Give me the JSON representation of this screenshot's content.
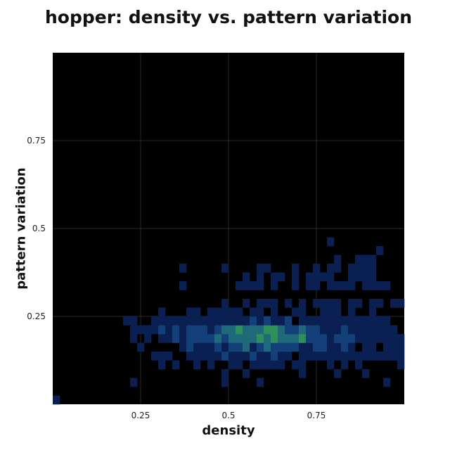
{
  "chart_data": {
    "type": "heatmap",
    "title": "hopper: density vs. pattern variation",
    "xlabel": "density",
    "ylabel": "pattern variation",
    "xlim": [
      0,
      1
    ],
    "ylim": [
      0,
      1
    ],
    "xticks": [
      0.25,
      0.5,
      0.75
    ],
    "yticks": [
      0.25,
      0.5,
      0.75
    ],
    "xtick_labels": [
      "0.25",
      "0.5",
      "0.75"
    ],
    "ytick_labels": [
      "0.25",
      "0.5",
      "0.75"
    ],
    "grid": true,
    "bins": [
      50,
      40
    ],
    "background": "#000000",
    "colormap": [
      "#0a1f52",
      "#14407a",
      "#1f6a7a",
      "#2f8f5a",
      "#4cc13a",
      "#9be61a"
    ],
    "cells": [
      [
        0,
        0,
        1
      ],
      [
        11,
        2,
        1
      ],
      [
        24,
        2,
        1
      ],
      [
        29,
        2,
        1
      ],
      [
        47,
        2,
        1
      ],
      [
        24,
        3,
        1
      ],
      [
        27,
        3,
        1
      ],
      [
        35,
        3,
        1
      ],
      [
        40,
        3,
        1
      ],
      [
        44,
        3,
        1
      ],
      [
        15,
        4,
        1
      ],
      [
        17,
        4,
        1
      ],
      [
        20,
        4,
        1
      ],
      [
        22,
        4,
        1
      ],
      [
        25,
        4,
        1
      ],
      [
        26,
        4,
        1
      ],
      [
        28,
        4,
        1
      ],
      [
        29,
        4,
        1
      ],
      [
        30,
        4,
        1
      ],
      [
        31,
        4,
        1
      ],
      [
        32,
        4,
        1
      ],
      [
        34,
        4,
        1
      ],
      [
        35,
        4,
        1
      ],
      [
        39,
        4,
        1
      ],
      [
        41,
        4,
        1
      ],
      [
        43,
        4,
        1
      ],
      [
        49,
        4,
        1
      ],
      [
        14,
        5,
        1
      ],
      [
        15,
        5,
        1
      ],
      [
        16,
        5,
        1
      ],
      [
        19,
        5,
        1
      ],
      [
        20,
        5,
        1
      ],
      [
        21,
        5,
        1
      ],
      [
        22,
        5,
        1
      ],
      [
        23,
        5,
        1
      ],
      [
        24,
        5,
        2
      ],
      [
        25,
        5,
        1
      ],
      [
        26,
        5,
        1
      ],
      [
        27,
        5,
        1
      ],
      [
        28,
        5,
        2
      ],
      [
        29,
        5,
        1
      ],
      [
        30,
        5,
        1
      ],
      [
        31,
        5,
        2
      ],
      [
        32,
        5,
        1
      ],
      [
        33,
        5,
        1
      ],
      [
        35,
        5,
        1
      ],
      [
        36,
        5,
        1
      ],
      [
        37,
        5,
        1
      ],
      [
        38,
        5,
        1
      ],
      [
        39,
        5,
        1
      ],
      [
        40,
        5,
        1
      ],
      [
        41,
        5,
        1
      ],
      [
        42,
        5,
        1
      ],
      [
        43,
        5,
        1
      ],
      [
        44,
        5,
        1
      ],
      [
        45,
        5,
        1
      ],
      [
        46,
        5,
        1
      ],
      [
        47,
        5,
        1
      ],
      [
        48,
        5,
        1
      ],
      [
        49,
        5,
        1
      ],
      [
        12,
        6,
        1
      ],
      [
        18,
        6,
        1
      ],
      [
        19,
        6,
        2
      ],
      [
        20,
        6,
        1
      ],
      [
        21,
        6,
        1
      ],
      [
        22,
        6,
        1
      ],
      [
        23,
        6,
        2
      ],
      [
        24,
        6,
        1
      ],
      [
        25,
        6,
        2
      ],
      [
        26,
        6,
        2
      ],
      [
        27,
        6,
        3
      ],
      [
        28,
        6,
        1
      ],
      [
        29,
        6,
        2
      ],
      [
        30,
        6,
        3
      ],
      [
        31,
        6,
        2
      ],
      [
        32,
        6,
        2
      ],
      [
        33,
        6,
        2
      ],
      [
        34,
        6,
        2
      ],
      [
        35,
        6,
        1
      ],
      [
        36,
        6,
        1
      ],
      [
        37,
        6,
        2
      ],
      [
        38,
        6,
        2
      ],
      [
        39,
        6,
        1
      ],
      [
        40,
        6,
        1
      ],
      [
        41,
        6,
        2
      ],
      [
        42,
        6,
        1
      ],
      [
        44,
        6,
        1
      ],
      [
        45,
        6,
        1
      ],
      [
        47,
        6,
        1
      ],
      [
        48,
        6,
        1
      ],
      [
        49,
        6,
        1
      ],
      [
        11,
        7,
        1
      ],
      [
        13,
        7,
        1
      ],
      [
        15,
        7,
        1
      ],
      [
        16,
        7,
        1
      ],
      [
        17,
        7,
        2
      ],
      [
        18,
        7,
        1
      ],
      [
        19,
        7,
        2
      ],
      [
        20,
        7,
        2
      ],
      [
        21,
        7,
        2
      ],
      [
        22,
        7,
        2
      ],
      [
        23,
        7,
        3
      ],
      [
        24,
        7,
        2
      ],
      [
        25,
        7,
        3
      ],
      [
        26,
        7,
        3
      ],
      [
        27,
        7,
        3
      ],
      [
        28,
        7,
        3
      ],
      [
        29,
        7,
        4
      ],
      [
        30,
        7,
        3
      ],
      [
        31,
        7,
        4
      ],
      [
        32,
        7,
        3
      ],
      [
        33,
        7,
        3
      ],
      [
        34,
        7,
        3
      ],
      [
        35,
        7,
        4
      ],
      [
        36,
        7,
        2
      ],
      [
        37,
        7,
        2
      ],
      [
        38,
        7,
        2
      ],
      [
        39,
        7,
        1
      ],
      [
        40,
        7,
        2
      ],
      [
        41,
        7,
        2
      ],
      [
        42,
        7,
        2
      ],
      [
        43,
        7,
        1
      ],
      [
        44,
        7,
        1
      ],
      [
        45,
        7,
        1
      ],
      [
        46,
        7,
        1
      ],
      [
        47,
        7,
        1
      ],
      [
        48,
        7,
        1
      ],
      [
        49,
        7,
        1
      ],
      [
        11,
        8,
        1
      ],
      [
        12,
        8,
        1
      ],
      [
        13,
        8,
        1
      ],
      [
        14,
        8,
        1
      ],
      [
        15,
        8,
        2
      ],
      [
        16,
        8,
        1
      ],
      [
        17,
        8,
        2
      ],
      [
        18,
        8,
        1
      ],
      [
        19,
        8,
        2
      ],
      [
        20,
        8,
        2
      ],
      [
        21,
        8,
        2
      ],
      [
        22,
        8,
        1
      ],
      [
        23,
        8,
        2
      ],
      [
        24,
        8,
        3
      ],
      [
        25,
        8,
        3
      ],
      [
        26,
        8,
        4
      ],
      [
        27,
        8,
        3
      ],
      [
        28,
        8,
        3
      ],
      [
        29,
        8,
        3
      ],
      [
        30,
        8,
        4
      ],
      [
        31,
        8,
        4
      ],
      [
        32,
        8,
        3
      ],
      [
        33,
        8,
        2
      ],
      [
        34,
        8,
        2
      ],
      [
        35,
        8,
        3
      ],
      [
        36,
        8,
        2
      ],
      [
        37,
        8,
        2
      ],
      [
        38,
        8,
        1
      ],
      [
        39,
        8,
        1
      ],
      [
        40,
        8,
        1
      ],
      [
        41,
        8,
        2
      ],
      [
        42,
        8,
        1
      ],
      [
        43,
        8,
        1
      ],
      [
        44,
        8,
        1
      ],
      [
        45,
        8,
        1
      ],
      [
        46,
        8,
        1
      ],
      [
        47,
        8,
        1
      ],
      [
        48,
        8,
        1
      ],
      [
        10,
        9,
        1
      ],
      [
        11,
        9,
        1
      ],
      [
        14,
        9,
        1
      ],
      [
        15,
        9,
        1
      ],
      [
        16,
        9,
        1
      ],
      [
        17,
        9,
        1
      ],
      [
        18,
        9,
        1
      ],
      [
        19,
        9,
        1
      ],
      [
        20,
        9,
        1
      ],
      [
        21,
        9,
        1
      ],
      [
        22,
        9,
        1
      ],
      [
        23,
        9,
        1
      ],
      [
        24,
        9,
        1
      ],
      [
        25,
        9,
        1
      ],
      [
        26,
        9,
        1
      ],
      [
        27,
        9,
        1
      ],
      [
        28,
        9,
        2
      ],
      [
        29,
        9,
        1
      ],
      [
        30,
        9,
        2
      ],
      [
        31,
        9,
        1
      ],
      [
        32,
        9,
        1
      ],
      [
        33,
        9,
        2
      ],
      [
        35,
        9,
        1
      ],
      [
        36,
        9,
        1
      ],
      [
        37,
        9,
        1
      ],
      [
        38,
        9,
        1
      ],
      [
        39,
        9,
        1
      ],
      [
        40,
        9,
        1
      ],
      [
        41,
        9,
        1
      ],
      [
        42,
        9,
        1
      ],
      [
        43,
        9,
        1
      ],
      [
        44,
        9,
        1
      ],
      [
        45,
        9,
        1
      ],
      [
        46,
        9,
        1
      ],
      [
        47,
        9,
        1
      ],
      [
        15,
        10,
        1
      ],
      [
        19,
        10,
        1
      ],
      [
        20,
        10,
        1
      ],
      [
        22,
        10,
        1
      ],
      [
        23,
        10,
        1
      ],
      [
        24,
        10,
        1
      ],
      [
        25,
        10,
        1
      ],
      [
        26,
        10,
        1
      ],
      [
        28,
        10,
        1
      ],
      [
        29,
        10,
        1
      ],
      [
        31,
        10,
        1
      ],
      [
        34,
        10,
        1
      ],
      [
        35,
        10,
        1
      ],
      [
        38,
        10,
        1
      ],
      [
        39,
        10,
        1
      ],
      [
        40,
        10,
        1
      ],
      [
        42,
        10,
        1
      ],
      [
        45,
        10,
        1
      ],
      [
        24,
        11,
        1
      ],
      [
        27,
        11,
        1
      ],
      [
        29,
        11,
        1
      ],
      [
        30,
        11,
        1
      ],
      [
        31,
        11,
        1
      ],
      [
        33,
        11,
        1
      ],
      [
        35,
        11,
        1
      ],
      [
        37,
        11,
        1
      ],
      [
        38,
        11,
        1
      ],
      [
        39,
        11,
        1
      ],
      [
        40,
        11,
        1
      ],
      [
        42,
        11,
        1
      ],
      [
        43,
        11,
        1
      ],
      [
        45,
        11,
        1
      ],
      [
        46,
        11,
        1
      ],
      [
        48,
        11,
        1
      ],
      [
        49,
        11,
        1
      ],
      [
        18,
        13,
        1
      ],
      [
        26,
        13,
        1
      ],
      [
        27,
        13,
        1
      ],
      [
        28,
        13,
        1
      ],
      [
        29,
        13,
        1
      ],
      [
        31,
        13,
        1
      ],
      [
        34,
        13,
        1
      ],
      [
        36,
        13,
        1
      ],
      [
        37,
        13,
        1
      ],
      [
        39,
        13,
        1
      ],
      [
        40,
        13,
        1
      ],
      [
        41,
        13,
        1
      ],
      [
        42,
        13,
        1
      ],
      [
        44,
        13,
        1
      ],
      [
        45,
        13,
        1
      ],
      [
        46,
        13,
        1
      ],
      [
        47,
        13,
        1
      ],
      [
        27,
        14,
        1
      ],
      [
        29,
        14,
        1
      ],
      [
        31,
        14,
        1
      ],
      [
        32,
        14,
        1
      ],
      [
        34,
        14,
        1
      ],
      [
        36,
        14,
        1
      ],
      [
        37,
        14,
        1
      ],
      [
        38,
        14,
        1
      ],
      [
        39,
        14,
        1
      ],
      [
        42,
        14,
        1
      ],
      [
        43,
        14,
        1
      ],
      [
        44,
        14,
        1
      ],
      [
        45,
        14,
        1
      ],
      [
        18,
        15,
        1
      ],
      [
        24,
        15,
        1
      ],
      [
        29,
        15,
        1
      ],
      [
        30,
        15,
        1
      ],
      [
        34,
        15,
        1
      ],
      [
        37,
        15,
        1
      ],
      [
        39,
        15,
        1
      ],
      [
        40,
        15,
        1
      ],
      [
        42,
        15,
        1
      ],
      [
        43,
        15,
        1
      ],
      [
        44,
        15,
        1
      ],
      [
        45,
        15,
        1
      ],
      [
        40,
        16,
        1
      ],
      [
        43,
        16,
        1
      ],
      [
        44,
        16,
        1
      ],
      [
        45,
        16,
        1
      ],
      [
        46,
        17,
        1
      ],
      [
        39,
        18,
        1
      ]
    ]
  }
}
